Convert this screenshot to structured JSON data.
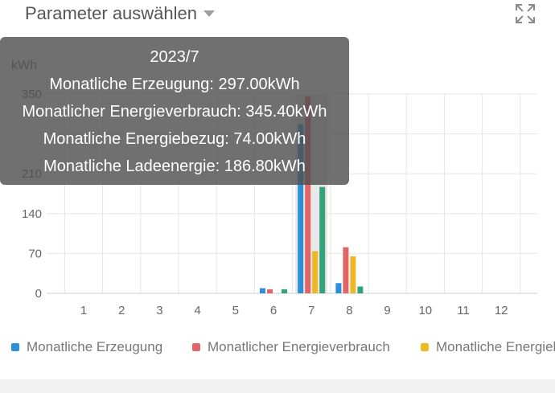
{
  "header": {
    "param_label": "Parameter auswählen",
    "caret_icon": "caret-down-icon",
    "expand_icon": "expand-icon"
  },
  "colors": {
    "erzeugung": "#2e8fd9",
    "verbrauch": "#e36464",
    "bezug": "#f0b626",
    "ladeenergie": "#34a37a",
    "grid": "#e6e6e6",
    "axis_text": "#666666"
  },
  "tooltip": {
    "title": "2023/7",
    "lines": [
      "Monatliche Erzeugung: 297.00kWh",
      "Monatlicher Energieverbrauch: 345.40kWh",
      "Monatliche Energiebezug: 74.00kWh",
      "Monatliche Ladeenergie: 186.80kWh"
    ]
  },
  "chart_data": {
    "type": "bar",
    "ylabel": "kWh",
    "xlabel": "",
    "title": "",
    "ylim": [
      0,
      350
    ],
    "yticks": [
      0,
      70,
      140,
      210,
      280,
      350
    ],
    "yticks_visible": [
      "0",
      "70",
      "140",
      "210",
      "",
      "350"
    ],
    "categories": [
      "1",
      "2",
      "3",
      "4",
      "5",
      "6",
      "7",
      "8",
      "9",
      "10",
      "11",
      "12"
    ],
    "highlight_category": "7",
    "grid": true,
    "legend_position": "bottom",
    "series": [
      {
        "name": "Monatliche Erzeugung",
        "values": [
          0,
          0,
          0,
          0,
          0,
          9,
          297,
          18,
          0,
          0,
          0,
          0
        ]
      },
      {
        "name": "Monatlicher Energieverbrauch",
        "values": [
          0,
          0,
          0,
          0,
          0,
          7,
          345.4,
          81,
          0,
          0,
          0,
          0
        ]
      },
      {
        "name": "Monatliche Energiebezug",
        "values": [
          0,
          0,
          0,
          0,
          0,
          0,
          74,
          65,
          0,
          0,
          0,
          0
        ]
      },
      {
        "name": "Monatliche Ladeenergie",
        "values": [
          0,
          0,
          0,
          0,
          0,
          7,
          186.8,
          12,
          0,
          0,
          0,
          0
        ]
      }
    ]
  }
}
